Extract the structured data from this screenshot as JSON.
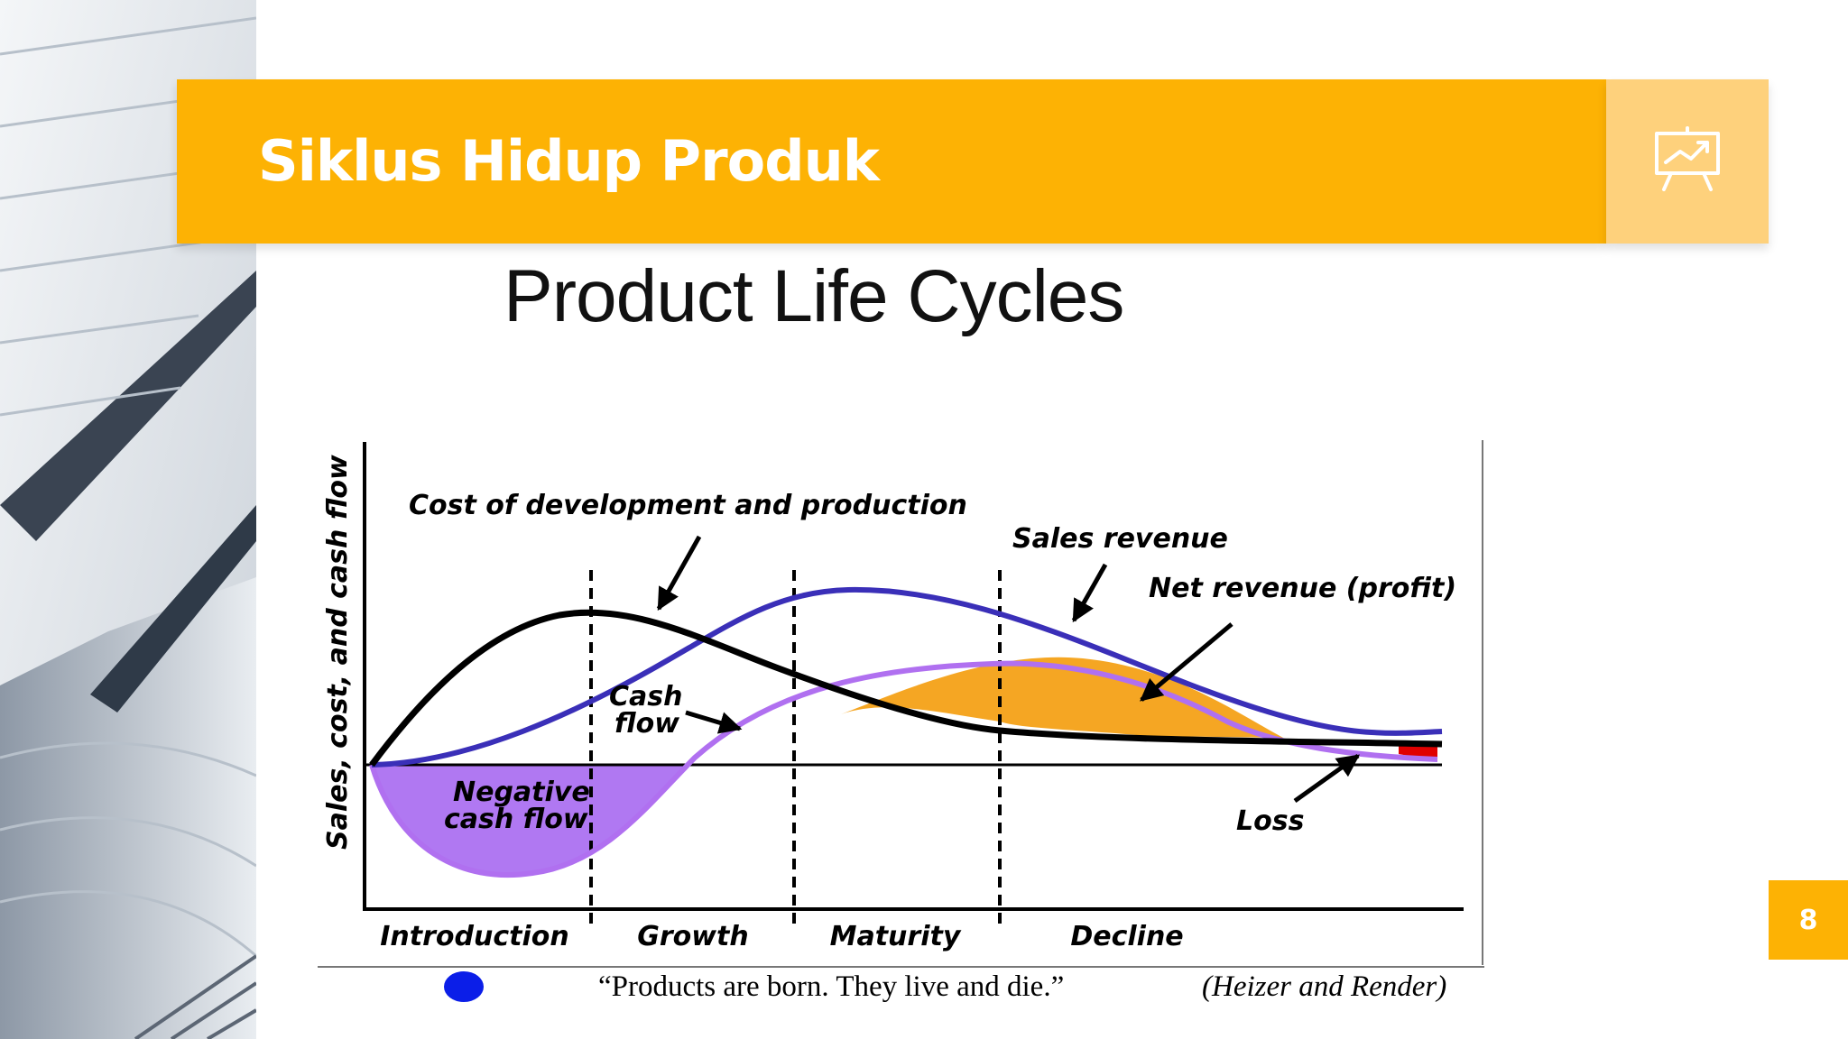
{
  "header": {
    "title": "Siklus Hidup Produk",
    "icon": "presentation-chart-icon"
  },
  "slide": {
    "heading": "Product Life Cycles",
    "page_number": "8"
  },
  "chart_data": {
    "type": "line",
    "ylabel": "Sales, cost, and cash flow",
    "stages": [
      "Introduction",
      "Growth",
      "Maturity",
      "Decline"
    ],
    "series": [
      {
        "name": "Sales revenue",
        "color": "#3a2fb8"
      },
      {
        "name": "Cost of development and production",
        "color": "#000000"
      },
      {
        "name": "Cash flow",
        "color": "#b070f0"
      }
    ],
    "annotations": {
      "cost": "Cost of development and production",
      "sales": "Sales revenue",
      "net": "Net revenue (profit)",
      "cash_line1": "Cash",
      "cash_line2": "flow",
      "neg_line1": "Negative",
      "neg_line2": "cash flow",
      "loss": "Loss"
    },
    "colors": {
      "negative_fill": "#b078f2",
      "profit_fill": "#f5a623",
      "loss_fill": "#e00000"
    },
    "quote": "“Products are born. They live and die.”",
    "citation": "(Heizer and Render)"
  }
}
